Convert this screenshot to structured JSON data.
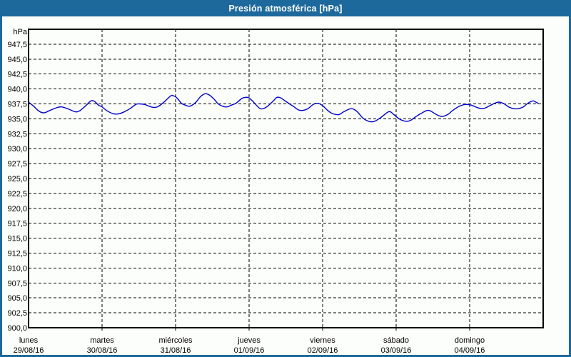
{
  "window": {
    "title": "Presión atmosférica [hPa]",
    "titlebar_color": "#1e699c",
    "border_color": "#1e699c",
    "background_color": "#fcfefb",
    "title_text_color": "#ffffff"
  },
  "chart_data": {
    "type": "line",
    "title": "Presión atmosférica [hPa]",
    "ylabel": "hPa",
    "xlabel": "",
    "ylim": [
      900,
      950
    ],
    "ytick_step": 2.5,
    "decimal_separator": ",",
    "grid": "dashed",
    "grid_color": "#000000",
    "frame_color": "#000000",
    "legend": "none",
    "y_tick_labels": [
      "947,5",
      "945,0",
      "942,5",
      "940,0",
      "937,5",
      "935,0",
      "932,5",
      "930,0",
      "927,5",
      "925,0",
      "922,5",
      "920,0",
      "917,5",
      "915,0",
      "912,5",
      "910,0",
      "907,5",
      "905,0",
      "902,5",
      "900,0"
    ],
    "x_range_days": [
      0,
      7
    ],
    "x_categories": [
      {
        "day": "lunes",
        "date": "29/08/16"
      },
      {
        "day": "martes",
        "date": "30/08/16"
      },
      {
        "day": "miércoles",
        "date": "31/08/16"
      },
      {
        "day": "jueves",
        "date": "01/09/16"
      },
      {
        "day": "viernes",
        "date": "02/09/16"
      },
      {
        "day": "sábado",
        "date": "03/09/16"
      },
      {
        "day": "domingo",
        "date": "04/09/16"
      }
    ],
    "series": [
      {
        "name": "Presión atmosférica [hPa]",
        "color": "#0000cd",
        "points": [
          [
            0.0,
            937.8
          ],
          [
            0.07,
            937.1
          ],
          [
            0.14,
            936.3
          ],
          [
            0.21,
            936.0
          ],
          [
            0.29,
            936.4
          ],
          [
            0.39,
            936.9
          ],
          [
            0.45,
            937.0
          ],
          [
            0.53,
            936.7
          ],
          [
            0.63,
            936.2
          ],
          [
            0.69,
            936.3
          ],
          [
            0.77,
            937.1
          ],
          [
            0.85,
            938.0
          ],
          [
            0.9,
            937.9
          ],
          [
            0.95,
            937.3
          ],
          [
            1.0,
            937.0
          ],
          [
            1.06,
            936.4
          ],
          [
            1.14,
            935.9
          ],
          [
            1.21,
            935.8
          ],
          [
            1.29,
            936.1
          ],
          [
            1.38,
            936.7
          ],
          [
            1.46,
            937.4
          ],
          [
            1.51,
            937.5
          ],
          [
            1.58,
            937.4
          ],
          [
            1.64,
            937.1
          ],
          [
            1.71,
            936.9
          ],
          [
            1.77,
            937.1
          ],
          [
            1.85,
            937.9
          ],
          [
            1.93,
            938.8
          ],
          [
            1.96,
            938.9
          ],
          [
            2.01,
            938.6
          ],
          [
            2.08,
            937.6
          ],
          [
            2.11,
            937.4
          ],
          [
            2.19,
            937.1
          ],
          [
            2.27,
            937.7
          ],
          [
            2.33,
            938.6
          ],
          [
            2.38,
            939.1
          ],
          [
            2.42,
            939.2
          ],
          [
            2.47,
            938.9
          ],
          [
            2.53,
            938.2
          ],
          [
            2.58,
            937.5
          ],
          [
            2.64,
            937.1
          ],
          [
            2.7,
            937.0
          ],
          [
            2.76,
            937.3
          ],
          [
            2.82,
            937.6
          ],
          [
            2.9,
            938.4
          ],
          [
            2.95,
            938.6
          ],
          [
            3.0,
            938.5
          ],
          [
            3.06,
            937.8
          ],
          [
            3.14,
            936.8
          ],
          [
            3.19,
            936.7
          ],
          [
            3.25,
            937.1
          ],
          [
            3.33,
            938.0
          ],
          [
            3.38,
            938.6
          ],
          [
            3.43,
            938.5
          ],
          [
            3.49,
            938.0
          ],
          [
            3.55,
            937.5
          ],
          [
            3.6,
            937.1
          ],
          [
            3.67,
            936.5
          ],
          [
            3.73,
            936.4
          ],
          [
            3.8,
            936.7
          ],
          [
            3.86,
            937.3
          ],
          [
            3.91,
            937.6
          ],
          [
            3.96,
            937.5
          ],
          [
            4.01,
            937.1
          ],
          [
            4.07,
            936.4
          ],
          [
            4.13,
            935.9
          ],
          [
            4.22,
            935.7
          ],
          [
            4.29,
            936.2
          ],
          [
            4.39,
            936.7
          ],
          [
            4.47,
            936.2
          ],
          [
            4.56,
            935.0
          ],
          [
            4.68,
            934.5
          ],
          [
            4.79,
            935.2
          ],
          [
            4.9,
            936.2
          ],
          [
            4.97,
            935.7
          ],
          [
            5.04,
            935.0
          ],
          [
            5.12,
            934.6
          ],
          [
            5.19,
            934.7
          ],
          [
            5.26,
            935.3
          ],
          [
            5.34,
            935.9
          ],
          [
            5.42,
            936.4
          ],
          [
            5.47,
            936.3
          ],
          [
            5.55,
            935.7
          ],
          [
            5.62,
            935.4
          ],
          [
            5.7,
            935.7
          ],
          [
            5.77,
            936.4
          ],
          [
            5.86,
            937.1
          ],
          [
            5.94,
            937.4
          ],
          [
            6.02,
            937.3
          ],
          [
            6.1,
            936.9
          ],
          [
            6.18,
            936.7
          ],
          [
            6.26,
            937.1
          ],
          [
            6.34,
            937.6
          ],
          [
            6.4,
            937.8
          ],
          [
            6.47,
            937.5
          ],
          [
            6.53,
            937.0
          ],
          [
            6.6,
            936.7
          ],
          [
            6.66,
            936.7
          ],
          [
            6.73,
            937.0
          ],
          [
            6.79,
            937.6
          ],
          [
            6.86,
            938.0
          ],
          [
            6.9,
            937.8
          ],
          [
            6.93,
            937.6
          ]
        ]
      }
    ]
  }
}
